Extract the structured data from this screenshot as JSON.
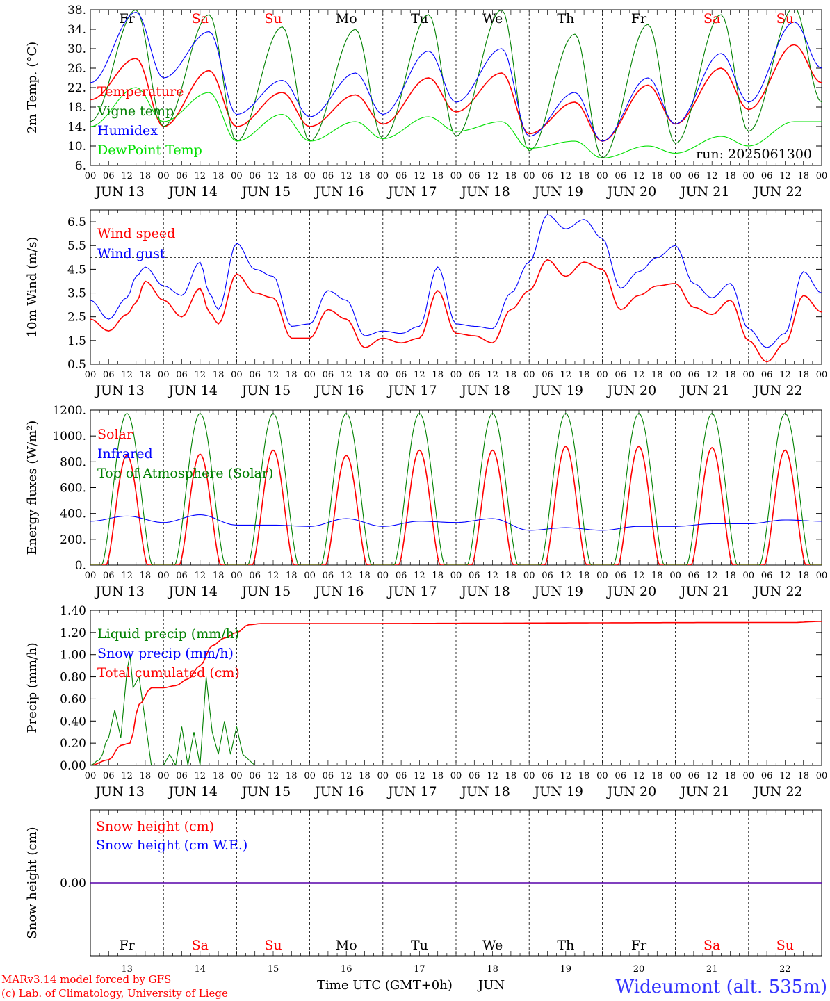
{
  "run": "run: 2025061300",
  "footer": {
    "model": "MARv3.14 model forced by GFS",
    "lab": "(c) Lab. of Climatology, University of Liege",
    "xaxis": "Time UTC (GMT+0h)",
    "month": "JUN",
    "station": "Wideumont (alt. 535m)"
  },
  "days": [
    {
      "abbr": "Fr",
      "num": "13",
      "date": "JUN 13",
      "weekend": false
    },
    {
      "abbr": "Sa",
      "num": "14",
      "date": "JUN 14",
      "weekend": true
    },
    {
      "abbr": "Su",
      "num": "15",
      "date": "JUN 15",
      "weekend": true
    },
    {
      "abbr": "Mo",
      "num": "16",
      "date": "JUN 16",
      "weekend": false
    },
    {
      "abbr": "Tu",
      "num": "17",
      "date": "JUN 17",
      "weekend": false
    },
    {
      "abbr": "We",
      "num": "18",
      "date": "JUN 18",
      "weekend": false
    },
    {
      "abbr": "Th",
      "num": "19",
      "date": "JUN 19",
      "weekend": false
    },
    {
      "abbr": "Fr",
      "num": "20",
      "date": "JUN 20",
      "weekend": false
    },
    {
      "abbr": "Sa",
      "num": "21",
      "date": "JUN 21",
      "weekend": true
    },
    {
      "abbr": "Su",
      "num": "22",
      "date": "JUN 22",
      "weekend": true
    }
  ],
  "hour_ticks": [
    "00",
    "06",
    "12",
    "18"
  ],
  "colors": {
    "red": "#ff0000",
    "green": "#008000",
    "blue": "#0000ff",
    "lightgreen": "#00e000",
    "weekday": "#000000",
    "weekend": "#ff0000"
  },
  "chart_data": [
    {
      "id": "temp",
      "type": "line",
      "ylabel": "2m Temp. (°C)",
      "ylim": [
        6,
        38
      ],
      "ticks": [
        6,
        10,
        14,
        18,
        22,
        26,
        30,
        34,
        38
      ],
      "tick_labels": [
        "6.",
        "10.",
        "14.",
        "18.",
        "22.",
        "26.",
        "30.",
        "34.",
        "38."
      ],
      "x_hours": [
        0,
        15,
        24,
        39,
        48,
        63,
        72,
        87,
        96,
        111,
        120,
        135,
        144,
        159,
        168,
        183,
        192,
        207,
        216,
        231,
        240
      ],
      "series": [
        {
          "name": "Temperature",
          "color": "#ff0000",
          "values": [
            19.5,
            28,
            14,
            25.5,
            14,
            21,
            14,
            20.5,
            14.5,
            24,
            17,
            25,
            12.5,
            19,
            11,
            22.5,
            14.5,
            26,
            17.5,
            30.8,
            23
          ]
        },
        {
          "name": "Vigne temp",
          "color": "#008000",
          "values": [
            15,
            38,
            14,
            37,
            11,
            34.5,
            11,
            34,
            11.5,
            37,
            12,
            38,
            9,
            33,
            7.5,
            35,
            10.5,
            37,
            13,
            38.5,
            19
          ]
        },
        {
          "name": "Humidex",
          "color": "#0000ff",
          "values": [
            23,
            37.5,
            24,
            33.5,
            16.5,
            23.5,
            16,
            25,
            16.5,
            29.5,
            19,
            30,
            12,
            21,
            11,
            24,
            14.5,
            29,
            19,
            35.5,
            26
          ]
        },
        {
          "name": "DewPoint Temp",
          "color": "#00e000",
          "values": [
            14,
            22,
            15,
            21,
            11,
            16.5,
            11,
            15,
            11.5,
            16,
            13,
            15,
            9.5,
            11,
            7.5,
            10,
            8.5,
            12,
            10,
            15,
            15
          ]
        }
      ]
    },
    {
      "id": "wind",
      "type": "line",
      "ylabel": "10m Wind (m/s)",
      "ylim": [
        0.5,
        7
      ],
      "ticks": [
        0.5,
        1.5,
        2.5,
        3.5,
        4.5,
        5.5,
        6.5
      ],
      "tick_labels": [
        "0.5",
        "1.5",
        "2.5",
        "3.5",
        "4.5",
        "5.5",
        "6.5"
      ],
      "hline": 5,
      "x_hours": [
        0,
        6,
        12,
        15,
        18,
        24,
        30,
        36,
        39,
        42,
        48,
        54,
        60,
        66,
        72,
        78,
        84,
        90,
        96,
        102,
        108,
        114,
        120,
        126,
        132,
        138,
        144,
        150,
        156,
        162,
        168,
        174,
        180,
        186,
        192,
        198,
        204,
        210,
        216,
        222,
        228,
        234,
        240
      ],
      "series": [
        {
          "name": "Wind speed",
          "color": "#ff0000",
          "values": [
            2.4,
            1.9,
            2.6,
            3.1,
            4,
            3.2,
            2.5,
            3.7,
            2.7,
            2.2,
            4.3,
            3.5,
            3.3,
            1.6,
            1.6,
            2.8,
            2.4,
            1.2,
            1.6,
            1.4,
            1.6,
            3.6,
            1.8,
            1.7,
            1.4,
            2.8,
            3.6,
            4.9,
            4.2,
            4.8,
            4.5,
            2.8,
            3.4,
            3.8,
            3.9,
            2.9,
            2.6,
            3.2,
            1.5,
            0.6,
            1.4,
            3.4,
            2.7
          ]
        },
        {
          "name": "Wind gust",
          "color": "#0000ff",
          "values": [
            3.2,
            2.4,
            3.3,
            4.2,
            4.6,
            3.8,
            3.4,
            4.8,
            3.5,
            2.8,
            5.6,
            4.5,
            4.2,
            2.1,
            2.2,
            3.6,
            3.2,
            1.7,
            1.9,
            1.8,
            2.1,
            4.6,
            2.2,
            2.1,
            2,
            3.5,
            4.8,
            6.8,
            6.2,
            6.6,
            5.8,
            3.7,
            4.4,
            5,
            5.5,
            3.9,
            3.3,
            3.9,
            2,
            1.2,
            1.8,
            4.4,
            3.5
          ]
        }
      ]
    },
    {
      "id": "energy",
      "type": "line",
      "ylabel": "Energy fluxes (W/m²)",
      "ylim": [
        0,
        1200
      ],
      "ticks": [
        0,
        200,
        400,
        600,
        800,
        1000,
        1200
      ],
      "tick_labels": [
        "0.",
        "200.",
        "400.",
        "600.",
        "800.",
        "1000.",
        "1200."
      ],
      "series": [
        {
          "name": "Solar",
          "color": "#ff0000",
          "daily_peak": [
            850,
            860,
            890,
            850,
            890,
            890,
            920,
            920,
            910,
            890
          ]
        },
        {
          "name": "Infrared",
          "color": "#0000ff",
          "x_hours": [
            0,
            12,
            24,
            36,
            48,
            60,
            72,
            84,
            96,
            108,
            120,
            132,
            144,
            156,
            168,
            180,
            192,
            204,
            216,
            228,
            240
          ],
          "values": [
            340,
            380,
            330,
            390,
            310,
            310,
            300,
            360,
            300,
            340,
            330,
            360,
            270,
            290,
            270,
            300,
            300,
            320,
            320,
            350,
            340
          ]
        },
        {
          "name": "Top of Atmosphere (Solar)",
          "color": "#008000",
          "daily_peak": [
            1175,
            1175,
            1175,
            1175,
            1175,
            1175,
            1175,
            1175,
            1175,
            1175
          ]
        }
      ]
    },
    {
      "id": "precip",
      "type": "line",
      "ylabel": "Precip (mm/h)",
      "ylim": [
        0,
        1.4
      ],
      "ticks": [
        0,
        0.2,
        0.4,
        0.6,
        0.8,
        1.0,
        1.2,
        1.4
      ],
      "tick_labels": [
        "0.00",
        "0.20",
        "0.40",
        "0.60",
        "0.80",
        "1.00",
        "1.20",
        "1.40"
      ],
      "series": [
        {
          "name": "Liquid precip (mm/h)",
          "color": "#008000",
          "x_hours": [
            0,
            3,
            6,
            8,
            10,
            12,
            13,
            14,
            16,
            18,
            20,
            22,
            24,
            26,
            28,
            30,
            32,
            34,
            36,
            38,
            40,
            42,
            44,
            46,
            48,
            50,
            52,
            54,
            56,
            240
          ],
          "values": [
            0,
            0.05,
            0.25,
            0.5,
            0.25,
            0.85,
            1.0,
            0.7,
            0.8,
            0.4,
            0,
            0,
            0,
            0.1,
            0,
            0.35,
            0,
            0.3,
            0,
            0.8,
            0.3,
            0.1,
            0.4,
            0.1,
            0.35,
            0.1,
            0.05,
            0,
            0,
            0
          ]
        },
        {
          "name": "Snow precip (mm/h)",
          "color": "#0000ff",
          "x_hours": [
            0,
            240
          ],
          "values": [
            0,
            0
          ]
        },
        {
          "name": "Total cumulated (cm)",
          "color": "#ff0000",
          "x_hours": [
            0,
            6,
            10,
            13,
            16,
            20,
            24,
            28,
            32,
            36,
            40,
            44,
            48,
            52,
            56,
            60,
            230,
            240
          ],
          "values": [
            0,
            0.05,
            0.18,
            0.2,
            0.55,
            0.7,
            0.7,
            0.72,
            0.78,
            0.9,
            1.08,
            1.15,
            1.2,
            1.27,
            1.28,
            1.28,
            1.29,
            1.3
          ]
        }
      ]
    },
    {
      "id": "snow",
      "type": "line",
      "ylabel": "Snow height (cm)",
      "ylim": [
        -1,
        1
      ],
      "ticks": [
        0
      ],
      "tick_labels": [
        "0.00"
      ],
      "series": [
        {
          "name": "Snow height (cm)",
          "color": "#ff0000",
          "x_hours": [
            0,
            240
          ],
          "values": [
            0,
            0
          ]
        },
        {
          "name": "Snow height (cm W.E.)",
          "color": "#0000ff",
          "x_hours": [
            0,
            240
          ],
          "values": [
            0,
            0
          ]
        }
      ]
    }
  ]
}
